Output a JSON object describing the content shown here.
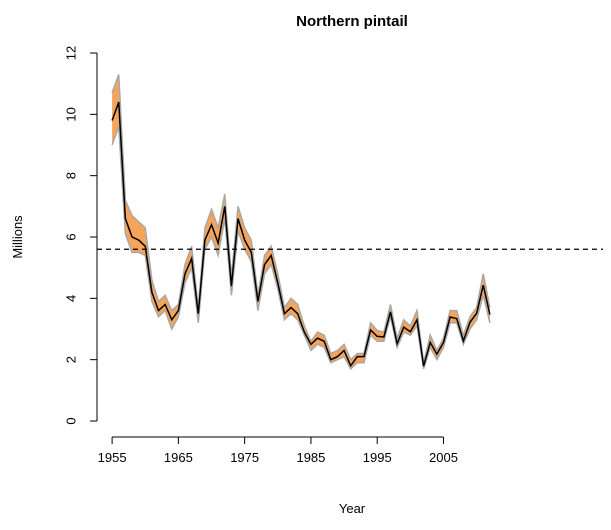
{
  "chart_data": {
    "type": "band-line",
    "title": "Northern pintail",
    "x_label": "Year",
    "y_label": "Millions",
    "x": [
      1955,
      1956,
      1957,
      1958,
      1959,
      1960,
      1961,
      1962,
      1963,
      1964,
      1965,
      1966,
      1967,
      1968,
      1969,
      1970,
      1971,
      1972,
      1973,
      1974,
      1975,
      1976,
      1977,
      1978,
      1979,
      1980,
      1981,
      1982,
      1983,
      1984,
      1985,
      1986,
      1987,
      1988,
      1989,
      1990,
      1991,
      1992,
      1993,
      1994,
      1995,
      1996,
      1997,
      1998,
      1999,
      2000,
      2001,
      2002,
      2003,
      2004,
      2005,
      2006,
      2007,
      2008,
      2009,
      2010,
      2011,
      2012
    ],
    "values": [
      9.8,
      10.4,
      6.6,
      6.0,
      5.9,
      5.7,
      4.2,
      3.6,
      3.8,
      3.3,
      3.6,
      4.8,
      5.3,
      3.5,
      5.9,
      6.4,
      5.8,
      7.0,
      4.4,
      6.6,
      5.9,
      5.5,
      3.9,
      5.1,
      5.4,
      4.5,
      3.5,
      3.7,
      3.5,
      2.9,
      2.5,
      2.7,
      2.6,
      2.0,
      2.1,
      2.3,
      1.8,
      2.1,
      2.1,
      2.97,
      2.76,
      2.74,
      3.56,
      2.52,
      3.06,
      2.91,
      3.3,
      1.79,
      2.56,
      2.18,
      2.56,
      3.39,
      3.34,
      2.61,
      3.22,
      3.51,
      4.43,
      3.47
    ],
    "lower": [
      9.0,
      9.6,
      6.1,
      5.5,
      5.5,
      5.4,
      3.9,
      3.4,
      3.6,
      3.0,
      3.4,
      4.5,
      5.0,
      3.2,
      5.6,
      6.0,
      5.4,
      6.6,
      4.1,
      6.2,
      5.6,
      5.2,
      3.6,
      4.8,
      5.1,
      4.3,
      3.3,
      3.5,
      3.3,
      2.8,
      2.3,
      2.5,
      2.4,
      1.9,
      2.0,
      2.1,
      1.7,
      1.9,
      1.9,
      2.8,
      2.6,
      2.6,
      3.4,
      2.4,
      2.9,
      2.8,
      3.1,
      1.7,
      2.4,
      2.0,
      2.4,
      3.2,
      3.2,
      2.5,
      3.0,
      3.3,
      4.1,
      3.2
    ],
    "upper": [
      10.7,
      11.3,
      7.2,
      6.7,
      6.5,
      6.3,
      4.6,
      3.9,
      4.1,
      3.6,
      3.8,
      5.1,
      5.7,
      3.7,
      6.3,
      6.9,
      6.3,
      7.4,
      4.7,
      7.0,
      6.3,
      5.9,
      4.1,
      5.4,
      5.7,
      4.8,
      3.7,
      4.0,
      3.8,
      3.1,
      2.6,
      2.9,
      2.8,
      2.2,
      2.3,
      2.5,
      2.0,
      2.2,
      2.2,
      3.2,
      2.95,
      2.9,
      3.8,
      2.7,
      3.3,
      3.1,
      3.6,
      1.9,
      2.8,
      2.3,
      2.7,
      3.6,
      3.6,
      2.8,
      3.4,
      3.7,
      4.8,
      3.7
    ],
    "reference_line": 5.6,
    "line_color": "#000000",
    "band_color": "#f5a55a",
    "band_edge_color": "#a8a8a8",
    "xlim": [
      1952.72,
      2014.28
    ],
    "xticks": [
      1955,
      1965,
      1975,
      1985,
      1995,
      2005
    ],
    "ylim": [
      0,
      12
    ],
    "yticks": [
      0,
      2,
      4,
      6,
      8,
      10,
      12
    ]
  }
}
